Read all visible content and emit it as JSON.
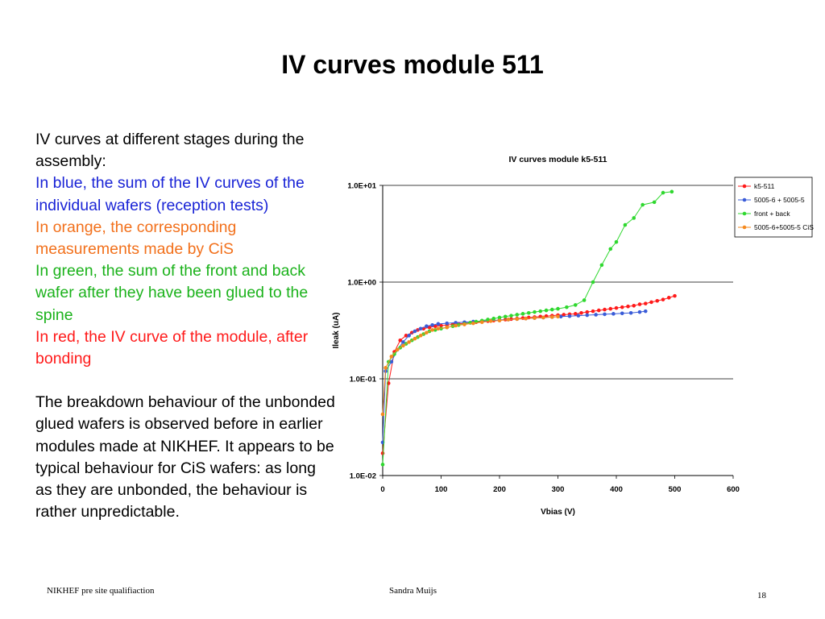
{
  "slide": {
    "title": "IV curves module 511",
    "paragraphs": [
      {
        "text": "IV curves at different stages during the assembly:",
        "color": "#000000"
      },
      {
        "text": "In blue, the sum of the IV curves of the individual wafers (reception tests)",
        "color": "#1a24d6"
      },
      {
        "text": "In orange, the corresponding measurements made by CiS",
        "color": "#f2701b"
      },
      {
        "text": "In green, the sum of the front and back wafer after they have been glued to the spine",
        "color": "#1bb21b"
      },
      {
        "text": "In red, the IV curve of the module, after bonding",
        "color": "#ff1a1a"
      },
      {
        "text": "The breakdown behaviour of the unbonded glued wafers is observed before in earlier modules made at NIKHEF. It appears to be typical behaviour for CiS wafers: as long as they are unbonded, the behaviour is rather unpredictable.",
        "color": "#000000"
      }
    ],
    "footer": {
      "left": "NIKHEF pre site qualifiaction",
      "center": "Sandra Muijs",
      "page_number": "18"
    }
  },
  "chart_data": {
    "type": "line",
    "title": "IV curves module k5-511",
    "xlabel": "Vbias (V)",
    "ylabel": "Ileak (uA)",
    "xlim": [
      0,
      600
    ],
    "ylim": [
      0.01,
      10
    ],
    "y_scale": "log",
    "x_ticks": [
      "0",
      "100",
      "200",
      "300",
      "400",
      "500",
      "600"
    ],
    "y_ticks": [
      "1.0E-02",
      "1.0E-01",
      "1.0E+00",
      "1.0E+01"
    ],
    "y_tick_values": [
      0.01,
      0.1,
      1,
      10
    ],
    "horizontal_gridlines": true,
    "legend_position": "top-right",
    "series": [
      {
        "name": "k5-511",
        "color": "#ff1a1a",
        "points": [
          [
            0,
            0.017
          ],
          [
            10,
            0.09
          ],
          [
            20,
            0.19
          ],
          [
            30,
            0.25
          ],
          [
            40,
            0.28
          ],
          [
            50,
            0.3
          ],
          [
            60,
            0.32
          ],
          [
            70,
            0.33
          ],
          [
            80,
            0.34
          ],
          [
            90,
            0.35
          ],
          [
            100,
            0.355
          ],
          [
            110,
            0.36
          ],
          [
            120,
            0.365
          ],
          [
            130,
            0.37
          ],
          [
            140,
            0.375
          ],
          [
            150,
            0.38
          ],
          [
            160,
            0.385
          ],
          [
            170,
            0.39
          ],
          [
            180,
            0.395
          ],
          [
            190,
            0.4
          ],
          [
            200,
            0.405
          ],
          [
            210,
            0.41
          ],
          [
            220,
            0.415
          ],
          [
            230,
            0.42
          ],
          [
            240,
            0.425
          ],
          [
            250,
            0.43
          ],
          [
            260,
            0.435
          ],
          [
            270,
            0.44
          ],
          [
            280,
            0.445
          ],
          [
            290,
            0.45
          ],
          [
            300,
            0.455
          ],
          [
            310,
            0.46
          ],
          [
            320,
            0.465
          ],
          [
            330,
            0.47
          ],
          [
            340,
            0.48
          ],
          [
            350,
            0.49
          ],
          [
            360,
            0.5
          ],
          [
            370,
            0.51
          ],
          [
            380,
            0.52
          ],
          [
            390,
            0.53
          ],
          [
            400,
            0.54
          ],
          [
            410,
            0.55
          ],
          [
            420,
            0.56
          ],
          [
            430,
            0.57
          ],
          [
            440,
            0.59
          ],
          [
            450,
            0.6
          ],
          [
            460,
            0.62
          ],
          [
            470,
            0.64
          ],
          [
            480,
            0.66
          ],
          [
            490,
            0.69
          ],
          [
            500,
            0.72
          ]
        ]
      },
      {
        "name": "5005-6 + 5005-5",
        "color": "#3a5cd8",
        "points": [
          [
            0,
            0.022
          ],
          [
            5,
            0.12
          ],
          [
            15,
            0.15
          ],
          [
            25,
            0.2
          ],
          [
            35,
            0.24
          ],
          [
            45,
            0.28
          ],
          [
            55,
            0.31
          ],
          [
            65,
            0.33
          ],
          [
            75,
            0.35
          ],
          [
            85,
            0.36
          ],
          [
            95,
            0.37
          ],
          [
            110,
            0.375
          ],
          [
            125,
            0.38
          ],
          [
            140,
            0.385
          ],
          [
            155,
            0.39
          ],
          [
            170,
            0.395
          ],
          [
            185,
            0.4
          ],
          [
            200,
            0.405
          ],
          [
            215,
            0.41
          ],
          [
            230,
            0.415
          ],
          [
            245,
            0.42
          ],
          [
            260,
            0.425
          ],
          [
            275,
            0.43
          ],
          [
            290,
            0.435
          ],
          [
            305,
            0.44
          ],
          [
            320,
            0.445
          ],
          [
            335,
            0.45
          ],
          [
            350,
            0.455
          ],
          [
            365,
            0.46
          ],
          [
            380,
            0.465
          ],
          [
            395,
            0.47
          ],
          [
            410,
            0.475
          ],
          [
            425,
            0.48
          ],
          [
            440,
            0.49
          ],
          [
            450,
            0.5
          ]
        ]
      },
      {
        "name": "front + back",
        "color": "#2fd82f",
        "points": [
          [
            0,
            0.013
          ],
          [
            10,
            0.15
          ],
          [
            20,
            0.18
          ],
          [
            30,
            0.21
          ],
          [
            40,
            0.23
          ],
          [
            50,
            0.25
          ],
          [
            60,
            0.27
          ],
          [
            70,
            0.29
          ],
          [
            80,
            0.31
          ],
          [
            90,
            0.32
          ],
          [
            100,
            0.33
          ],
          [
            110,
            0.34
          ],
          [
            120,
            0.35
          ],
          [
            130,
            0.36
          ],
          [
            140,
            0.37
          ],
          [
            150,
            0.38
          ],
          [
            160,
            0.39
          ],
          [
            170,
            0.4
          ],
          [
            180,
            0.41
          ],
          [
            190,
            0.42
          ],
          [
            200,
            0.43
          ],
          [
            210,
            0.44
          ],
          [
            220,
            0.45
          ],
          [
            230,
            0.46
          ],
          [
            240,
            0.47
          ],
          [
            250,
            0.48
          ],
          [
            260,
            0.49
          ],
          [
            270,
            0.5
          ],
          [
            280,
            0.51
          ],
          [
            290,
            0.52
          ],
          [
            300,
            0.53
          ],
          [
            315,
            0.55
          ],
          [
            330,
            0.58
          ],
          [
            345,
            0.65
          ],
          [
            360,
            1.0
          ],
          [
            375,
            1.5
          ],
          [
            390,
            2.2
          ],
          [
            400,
            2.6
          ],
          [
            415,
            3.9
          ],
          [
            430,
            4.6
          ],
          [
            445,
            6.3
          ],
          [
            465,
            6.7
          ],
          [
            480,
            8.4
          ],
          [
            495,
            8.6
          ]
        ]
      },
      {
        "name": "5005-6+5005-5 CiS",
        "color": "#f58a1f",
        "points": [
          [
            0,
            0.043
          ],
          [
            5,
            0.13
          ],
          [
            15,
            0.17
          ],
          [
            25,
            0.2
          ],
          [
            35,
            0.22
          ],
          [
            45,
            0.24
          ],
          [
            55,
            0.26
          ],
          [
            65,
            0.28
          ],
          [
            75,
            0.3
          ],
          [
            85,
            0.32
          ],
          [
            95,
            0.33
          ],
          [
            110,
            0.34
          ],
          [
            125,
            0.355
          ],
          [
            140,
            0.365
          ],
          [
            155,
            0.375
          ],
          [
            170,
            0.385
          ],
          [
            185,
            0.395
          ],
          [
            200,
            0.4
          ],
          [
            215,
            0.41
          ],
          [
            230,
            0.415
          ],
          [
            245,
            0.42
          ],
          [
            260,
            0.425
          ],
          [
            275,
            0.43
          ],
          [
            290,
            0.435
          ],
          [
            300,
            0.44
          ]
        ]
      }
    ]
  }
}
